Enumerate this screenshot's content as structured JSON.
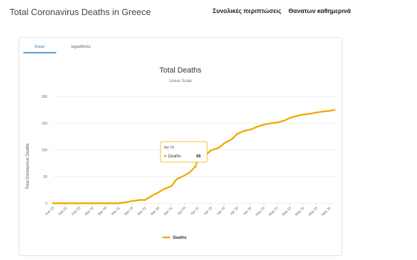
{
  "header": {
    "title": "Total Coronavirus Deaths in Greece",
    "links": [
      "Συνολικές περιπτώσεις",
      "Θανατων καθημερινά"
    ]
  },
  "tabs": [
    {
      "label": "linear",
      "active": true
    },
    {
      "label": "logarithmic",
      "active": false
    }
  ],
  "tooltip": {
    "date": "Apr 09",
    "series": "Deaths",
    "value": "68"
  },
  "colors": {
    "series": "#f2a900"
  },
  "chart_data": {
    "type": "line",
    "title": "Total Deaths",
    "subtitle": "Linear Scale",
    "ylabel": "Total Coronavirus Deaths",
    "xlabel": "",
    "ylim": [
      0,
      200
    ],
    "yticks": [
      0,
      50,
      100,
      150,
      200
    ],
    "legend_position": "bottom-center",
    "x_tick_labels": [
      "Feb 15",
      "Feb 20",
      "Feb 25",
      "Mar 01",
      "Mar 06",
      "Mar 11",
      "Mar 16",
      "Mar 21",
      "Mar 26",
      "Mar 31",
      "Apr 05",
      "Apr 10",
      "Apr 15",
      "Apr 20",
      "Apr 25",
      "Apr 30",
      "May 05",
      "May 10",
      "May 15",
      "May 20",
      "May 25",
      "May 30"
    ],
    "series": [
      {
        "name": "Deaths",
        "x": [
          "Feb 15",
          "Feb 20",
          "Feb 25",
          "Mar 01",
          "Mar 06",
          "Mar 11",
          "Mar 14",
          "Mar 16",
          "Mar 19",
          "Mar 21",
          "Mar 24",
          "Mar 26",
          "Mar 28",
          "Mar 31",
          "Apr 02",
          "Apr 05",
          "Apr 07",
          "Apr 09",
          "Apr 10",
          "Apr 13",
          "Apr 15",
          "Apr 18",
          "Apr 20",
          "Apr 23",
          "Apr 25",
          "Apr 28",
          "Apr 30",
          "May 03",
          "May 05",
          "May 08",
          "May 10",
          "May 13",
          "May 15",
          "May 18",
          "May 20",
          "May 23",
          "May 25",
          "May 28",
          "May 30",
          "Jun 01"
        ],
        "values": [
          0,
          0,
          0,
          0,
          0,
          0,
          2,
          4,
          6,
          6,
          15,
          20,
          26,
          32,
          45,
          52,
          58,
          68,
          80,
          90,
          99,
          104,
          112,
          120,
          130,
          136,
          138,
          144,
          147,
          150,
          151,
          155,
          160,
          164,
          166,
          168,
          170,
          172,
          173,
          175
        ]
      }
    ]
  }
}
